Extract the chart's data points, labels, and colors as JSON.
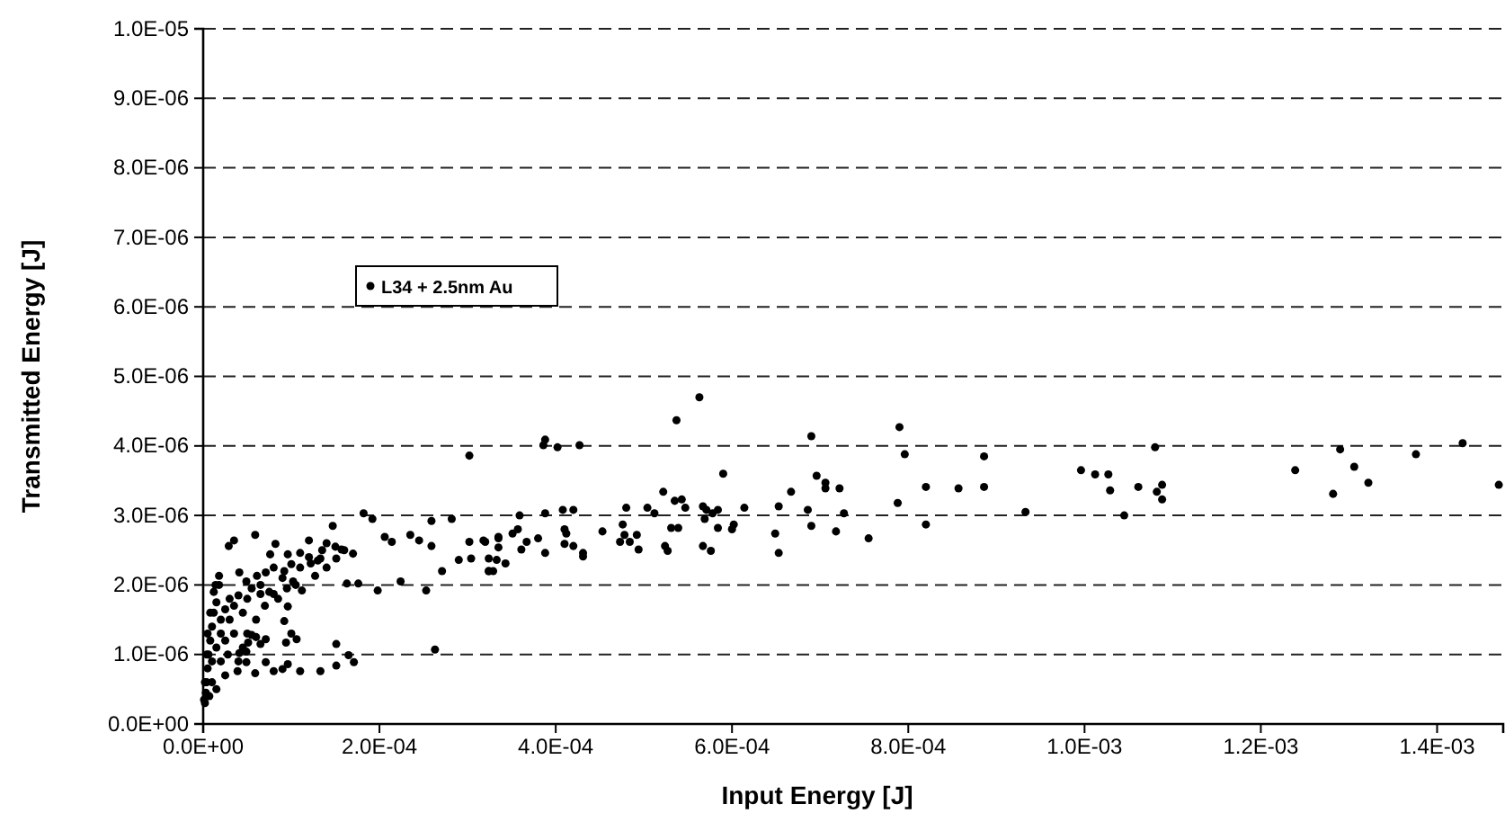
{
  "chart_data": {
    "type": "scatter",
    "xlabel": "Input Energy [J]",
    "ylabel": "Transmitted Energy [J]",
    "xlim": [
      0,
      0.001475
    ],
    "ylim": [
      0,
      1e-05
    ],
    "xticks": [
      {
        "value": 0,
        "label": "0.0E+00"
      },
      {
        "value": 0.0002,
        "label": "2.0E-04"
      },
      {
        "value": 0.0004,
        "label": "4.0E-04"
      },
      {
        "value": 0.0006,
        "label": "6.0E-04"
      },
      {
        "value": 0.0008,
        "label": "8.0E-04"
      },
      {
        "value": 0.001,
        "label": "1.0E-03"
      },
      {
        "value": 0.0012,
        "label": "1.2E-03"
      },
      {
        "value": 0.0014,
        "label": "1.4E-03"
      }
    ],
    "yticks": [
      {
        "value": 0,
        "label": "0.0E+00"
      },
      {
        "value": 1e-06,
        "label": "1.0E-06"
      },
      {
        "value": 2e-06,
        "label": "2.0E-06"
      },
      {
        "value": 3e-06,
        "label": "3.0E-06"
      },
      {
        "value": 4e-06,
        "label": "4.0E-06"
      },
      {
        "value": 5e-06,
        "label": "5.0E-06"
      },
      {
        "value": 6e-06,
        "label": "6.0E-06"
      },
      {
        "value": 7e-06,
        "label": "7.0E-06"
      },
      {
        "value": 8e-06,
        "label": "8.0E-06"
      },
      {
        "value": 9e-06,
        "label": "9.0E-06"
      },
      {
        "value": 1e-05,
        "label": "1.0E-05"
      }
    ],
    "grid": "y",
    "legend": "top left",
    "marker": "circle",
    "series": [
      {
        "name": "L34 + 2.5nm Au",
        "color": "#000000",
        "x": [
          2e-06,
          3e-06,
          4e-06,
          5e-06,
          6e-06,
          8e-06,
          1e-05,
          1.2e-05,
          1.5e-05,
          5e-06,
          1e-05,
          1.5e-05,
          2e-05,
          2e-05,
          2.5e-05,
          3e-05,
          1e-05,
          2e-05,
          2.5e-05,
          3e-05,
          3.5e-05,
          4e-05,
          2e-06,
          4e-06,
          8e-06,
          1.2e-05,
          1.8e-05,
          2.8e-05,
          3.5e-05,
          4.5e-05,
          5e-05,
          5.5e-05,
          6e-05,
          7e-05,
          6.5e-05,
          7.5e-05,
          4.5e-05,
          2.5e-05,
          1.5e-05,
          7e-06,
          1e-06,
          4e-05,
          5e-05,
          6e-05,
          8.5e-05,
          9e-05,
          0.0001,
          0.00011,
          0.00012,
          0.000135,
          0.00014,
          0.00015,
          0.00016,
          0.00017,
          0.00013,
          0.000105,
          9.5e-05,
          8e-05,
          0.00014,
          0.000302,
          0.000182,
          0.000192,
          0.000147,
          0.000259,
          0.000282,
          0.000235,
          0.000206,
          0.000214,
          0.000245,
          0.000259,
          0.000302,
          0.000318,
          0.000335,
          0.00029,
          0.000304,
          0.000324,
          0.000271,
          0.000253,
          0.000224,
          0.000198,
          0.000176,
          0.000163,
          0.000151,
          0.000157,
          0.000133,
          0.00012,
          0.000127,
          0.000122,
          0.00011,
          9.6e-05,
          9.2e-05,
          8.2e-05,
          5.9e-05,
          3.5e-05,
          2.9e-05,
          7.6e-05,
          7.1e-05,
          6.1e-05,
          4.9e-05,
          0.000102,
          0.000112,
          9.6e-05,
          9.2e-05,
          8e-05,
          6.5e-05,
          1.4e-05,
          1.8e-05,
          4.1e-05,
          0.000151,
          0.000165,
          0.000171,
          0.000151,
          0.000133,
          0.00011,
          9.6e-05,
          9e-05,
          8e-05,
          7.1e-05,
          5.9e-05,
          4.9e-05,
          3.9e-05,
          9.4e-05,
          0.0001,
          0.000106,
          7.1e-05,
          6.5e-05,
          5.5e-05,
          5.1e-05,
          4.9e-05,
          4.1e-05,
          0.000263,
          0.00032,
          0.000324,
          0.000324,
          0.000329,
          0.000333,
          0.000335,
          0.000335,
          0.000343,
          0.000351,
          0.000357,
          0.000359,
          0.000361,
          0.000367,
          0.00038,
          0.000386,
          0.000388,
          0.000388,
          0.000388,
          0.000402,
          0.000408,
          0.00041,
          0.00041,
          0.000412,
          0.00042,
          0.00042,
          0.000427,
          0.000431,
          0.000431,
          0.000453,
          0.000476,
          0.000478,
          0.00048,
          0.000473,
          0.000484,
          0.000492,
          0.000494,
          0.000504,
          0.000512,
          0.000522,
          0.000524,
          0.000527,
          0.000531,
          0.000535,
          0.000539,
          0.000543,
          0.000547,
          0.000537,
          0.000563,
          0.000567,
          0.000567,
          0.000569,
          0.000571,
          0.000576,
          0.000578,
          0.000584,
          0.000584,
          0.00059,
          0.0006,
          0.000602,
          0.000614,
          0.000649,
          0.000653,
          0.000653,
          0.000667,
          0.000686,
          0.00069,
          0.00069,
          0.000696,
          0.000706,
          0.000706,
          0.000718,
          0.000722,
          0.000727,
          0.000755,
          0.000788,
          0.00079,
          0.000796,
          0.00082,
          0.00082,
          0.000857,
          0.000886,
          0.000886,
          0.000933,
          0.000996,
          0.001012,
          0.001027,
          0.001029,
          0.001045,
          0.001061,
          0.00108,
          0.001082,
          0.001088,
          0.001088,
          0.001239,
          0.001282,
          0.00129,
          0.001306,
          0.001322,
          0.001376,
          0.001429,
          0.00147
        ],
        "values": [
          3e-07,
          4.5e-07,
          6e-07,
          8e-07,
          1e-06,
          1.2e-06,
          1.4e-06,
          1.6e-06,
          1.75e-06,
          1.3e-06,
          9e-07,
          1.1e-06,
          1.3e-06,
          1.5e-06,
          1.65e-06,
          1.8e-06,
          6e-07,
          9e-07,
          1.2e-06,
          1.5e-06,
          1.7e-06,
          1.85e-06,
          6e-07,
          1e-06,
          1.6e-06,
          1.9e-06,
          2e-06,
          1e-06,
          1.3e-06,
          1.6e-06,
          1.8e-06,
          1.95e-06,
          1.5e-06,
          1.7e-06,
          2e-06,
          1.9e-06,
          1.1e-06,
          7e-07,
          5e-07,
          4e-07,
          3.5e-07,
          9e-07,
          1.3e-06,
          1.25e-06,
          1.8e-06,
          2.1e-06,
          2.3e-06,
          2.25e-06,
          2.4e-06,
          2.5e-06,
          2.6e-06,
          2.55e-06,
          2.5e-06,
          2.45e-06,
          2.35e-06,
          2e-06,
          1.95e-06,
          2.25e-06,
          2.25e-06,
          3.86e-06,
          3.03e-06,
          2.95e-06,
          2.85e-06,
          2.92e-06,
          2.95e-06,
          2.72e-06,
          2.69e-06,
          2.62e-06,
          2.64e-06,
          2.56e-06,
          2.62e-06,
          2.64e-06,
          2.69e-06,
          2.36e-06,
          2.38e-06,
          2.2e-06,
          2.2e-06,
          1.92e-06,
          2.05e-06,
          1.92e-06,
          2.02e-06,
          2.02e-06,
          2.38e-06,
          2.51e-06,
          2.38e-06,
          2.64e-06,
          2.13e-06,
          2.31e-06,
          2.46e-06,
          2.44e-06,
          2.2e-06,
          2.59e-06,
          2.72e-06,
          2.64e-06,
          2.56e-06,
          2.44e-06,
          2.18e-06,
          2.13e-06,
          2.05e-06,
          2.05e-06,
          1.92e-06,
          1.69e-06,
          1.48e-06,
          1.87e-06,
          1.87e-06,
          2e-06,
          2.13e-06,
          2.18e-06,
          1.15e-06,
          9.9e-07,
          8.9e-07,
          8.4e-07,
          7.6e-07,
          7.6e-07,
          8.6e-07,
          7.9e-07,
          7.6e-07,
          8.9e-07,
          7.3e-07,
          8.9e-07,
          7.6e-07,
          1.17e-06,
          1.3e-06,
          1.22e-06,
          1.22e-06,
          1.15e-06,
          1.28e-06,
          1.17e-06,
          1.04e-06,
          1.02e-06,
          1.07e-06,
          2.62e-06,
          2.38e-06,
          2.2e-06,
          2.2e-06,
          2.36e-06,
          2.67e-06,
          2.54e-06,
          2.31e-06,
          2.74e-06,
          2.8e-06,
          3e-06,
          2.51e-06,
          2.62e-06,
          2.67e-06,
          4.01e-06,
          4.09e-06,
          3.03e-06,
          2.46e-06,
          3.98e-06,
          3.08e-06,
          2.8e-06,
          2.59e-06,
          2.74e-06,
          3.08e-06,
          2.56e-06,
          4.01e-06,
          2.46e-06,
          2.41e-06,
          2.77e-06,
          2.87e-06,
          2.72e-06,
          3.11e-06,
          2.62e-06,
          2.62e-06,
          2.72e-06,
          2.51e-06,
          3.11e-06,
          3.03e-06,
          3.34e-06,
          2.56e-06,
          2.49e-06,
          2.82e-06,
          3.21e-06,
          2.82e-06,
          3.23e-06,
          3.11e-06,
          4.37e-06,
          4.7e-06,
          3.13e-06,
          2.56e-06,
          2.95e-06,
          3.08e-06,
          2.49e-06,
          3.03e-06,
          3.08e-06,
          2.82e-06,
          3.6e-06,
          2.8e-06,
          2.87e-06,
          3.11e-06,
          2.74e-06,
          3.13e-06,
          2.46e-06,
          3.34e-06,
          3.08e-06,
          2.85e-06,
          4.14e-06,
          3.57e-06,
          3.47e-06,
          3.39e-06,
          2.77e-06,
          3.39e-06,
          3.03e-06,
          2.67e-06,
          3.18e-06,
          4.27e-06,
          3.88e-06,
          3.41e-06,
          2.87e-06,
          3.39e-06,
          3.85e-06,
          3.41e-06,
          3.05e-06,
          3.65e-06,
          3.59e-06,
          3.59e-06,
          3.36e-06,
          3e-06,
          3.41e-06,
          3.98e-06,
          3.34e-06,
          3.44e-06,
          3.23e-06,
          3.65e-06,
          3.31e-06,
          3.95e-06,
          3.7e-06,
          3.47e-06,
          3.88e-06,
          4.04e-06,
          3.44e-06
        ]
      }
    ]
  }
}
